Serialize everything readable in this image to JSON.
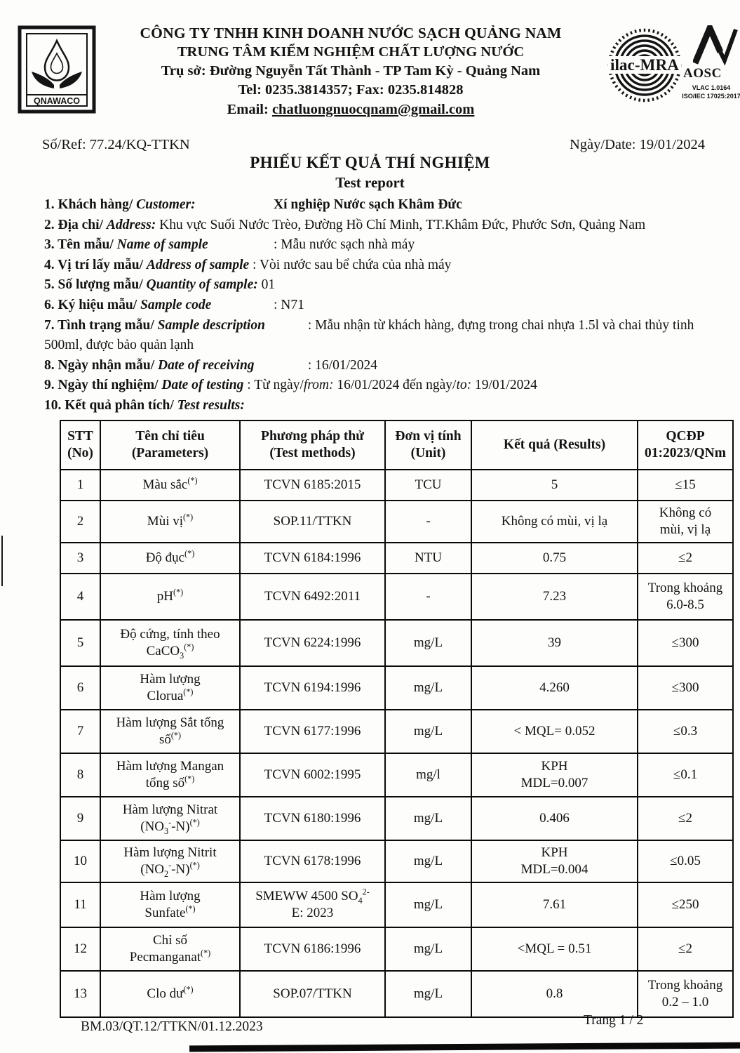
{
  "header": {
    "company": "CÔNG TY TNHH KINH DOANH NƯỚC SẠCH QUẢNG NAM",
    "center": "TRUNG TÂM KIỂM NGHIỆM CHẤT LƯỢNG NƯỚC",
    "address": "Trụ sở: Đường Nguyễn Tất Thành - TP Tam Kỳ -  Quảng Nam",
    "tel_fax": "Tel: 0235.3814357; Fax: 0235.814828",
    "email_label": "Email:",
    "email": "chatluongnuocqnam@gmail.com",
    "logos": {
      "qnawaco": "QNAWACO",
      "ilac": "ilac-MRA",
      "aosc": "AOSC",
      "aosc_sub1": "VLAC 1.0164",
      "aosc_sub2": "ISO/IEC 17025:2017"
    }
  },
  "ref_line": {
    "ref": "Số/Ref: 77.24/KQ-TTKN",
    "date": "Ngày/Date: 19/01/2024"
  },
  "title": "PHIẾU KẾT QUẢ THÍ NGHIỆM",
  "subtitle": "Test report",
  "info_items": [
    {
      "num": "1.",
      "vi": "Khách hàng/",
      "en": "Customer:",
      "value": [
        {
          "b": "Xí nghiệp Nước sạch Khâm Đức"
        }
      ]
    },
    {
      "num": "2.",
      "vi": "Địa chỉ/",
      "en": "Address:",
      "value": [
        {
          "t": " Khu vực Suối Nước Trèo, Đường Hồ Chí Minh, TT.Khâm Đức, Phước Sơn, Quảng Nam"
        }
      ]
    },
    {
      "num": "3.",
      "vi": "Tên mẫu/",
      "en": "Name of sample",
      "value": [
        {
          "t": ": Mẫu nước sạch nhà máy"
        }
      ]
    },
    {
      "num": "4.",
      "vi": "Vị trí lấy mẫu/",
      "en": "Address of sample",
      "value": [
        {
          "t": " : Vòi nước sau bể chứa của nhà máy"
        }
      ]
    },
    {
      "num": "5.",
      "vi": "Số lượng mẫu/",
      "en": "Quantity of sample:",
      "value": [
        {
          "t": " 01"
        }
      ]
    },
    {
      "num": "6.",
      "vi": "Ký hiệu mẫu/",
      "en": "Sample code",
      "value": [
        {
          "t": ": N71"
        }
      ]
    },
    {
      "num": "7.",
      "vi": "Tình trạng mẫu/",
      "en": "Sample description",
      "value": [
        {
          "t": " : Mẫu nhận từ khách hàng, đựng trong chai nhựa 1.5l và chai thủy tinh 500ml, được bảo quản lạnh"
        }
      ]
    },
    {
      "num": "8.",
      "vi": "Ngày nhận mẫu/",
      "en": "Date of receiving",
      "value": [
        {
          "t": " : 16/01/2024"
        }
      ]
    },
    {
      "num": "9.",
      "vi": "Ngày thí nghiệm/",
      "en": "Date of testing",
      "value": [
        {
          "t": " : Từ ngày/"
        },
        {
          "i": "from:"
        },
        {
          "t": " 16/01/2024  đến ngày/"
        },
        {
          "i": "to:"
        },
        {
          "t": " 19/01/2024"
        }
      ]
    },
    {
      "num": "10.",
      "vi": "Kết quả phân tích/",
      "en": "Test results:",
      "value": []
    }
  ],
  "table": {
    "headers": [
      {
        "l1": "STT",
        "l2": "(No)"
      },
      {
        "l1": "Tên chỉ tiêu",
        "l2": "(Parameters)"
      },
      {
        "l1": "Phương pháp thử",
        "l2": "(Test methods)"
      },
      {
        "l1": "Đơn vị tính",
        "l2": "(Unit)"
      },
      {
        "l1": "Kết quả (Results)",
        "l2": ""
      },
      {
        "l1": "QCĐP",
        "l2": "01:2023/QNm"
      }
    ],
    "rows": [
      {
        "no": "1",
        "param": [
          {
            "t": "Màu sắc"
          },
          {
            "sup": "(*)"
          }
        ],
        "method": [
          {
            "t": "TCVN 6185:2015"
          }
        ],
        "unit": "TCU",
        "result": [
          {
            "t": "5"
          }
        ],
        "limit": [
          {
            "t": "≤15"
          }
        ]
      },
      {
        "no": "2",
        "param": [
          {
            "t": "Mùi vị"
          },
          {
            "sup": "(*)"
          }
        ],
        "method": [
          {
            "t": "SOP.11/TTKN"
          }
        ],
        "unit": "-",
        "result": [
          {
            "t": "Không có mùi, vị lạ"
          }
        ],
        "limit": [
          {
            "t": "Không có"
          },
          {
            "br": true
          },
          {
            "t": "mùi, vị lạ"
          }
        ]
      },
      {
        "no": "3",
        "param": [
          {
            "t": "Độ đục"
          },
          {
            "sup": "(*)"
          }
        ],
        "method": [
          {
            "t": "TCVN 6184:1996"
          }
        ],
        "unit": "NTU",
        "result": [
          {
            "t": "0.75"
          }
        ],
        "limit": [
          {
            "t": "≤2"
          }
        ]
      },
      {
        "no": "4",
        "param": [
          {
            "t": "pH"
          },
          {
            "sup": "(*)"
          }
        ],
        "method": [
          {
            "t": "TCVN 6492:2011"
          }
        ],
        "unit": "-",
        "result": [
          {
            "t": "7.23"
          }
        ],
        "limit": [
          {
            "t": "Trong khoảng"
          },
          {
            "br": true
          },
          {
            "t": "6.0-8.5"
          }
        ]
      },
      {
        "no": "5",
        "param": [
          {
            "t": "Độ cứng, tính theo"
          },
          {
            "br": true
          },
          {
            "t": "CaCO"
          },
          {
            "sub": "3"
          },
          {
            "sup": "(*)"
          }
        ],
        "method": [
          {
            "t": "TCVN 6224:1996"
          }
        ],
        "unit": "mg/L",
        "result": [
          {
            "t": "39"
          }
        ],
        "limit": [
          {
            "t": "≤300"
          }
        ]
      },
      {
        "no": "6",
        "param": [
          {
            "t": "Hàm lượng"
          },
          {
            "br": true
          },
          {
            "t": "Clorua"
          },
          {
            "sup": "(*)"
          }
        ],
        "method": [
          {
            "t": "TCVN 6194:1996"
          }
        ],
        "unit": "mg/L",
        "result": [
          {
            "t": "4.260"
          }
        ],
        "limit": [
          {
            "t": "≤300"
          }
        ]
      },
      {
        "no": "7",
        "param": [
          {
            "t": "Hàm lượng Sắt tổng"
          },
          {
            "br": true
          },
          {
            "t": "số"
          },
          {
            "sup": "(*)"
          }
        ],
        "method": [
          {
            "t": "TCVN 6177:1996"
          }
        ],
        "unit": "mg/L",
        "result": [
          {
            "t": "< MQL= 0.052"
          }
        ],
        "limit": [
          {
            "t": "≤0.3"
          }
        ]
      },
      {
        "no": "8",
        "param": [
          {
            "t": "Hàm lượng Mangan"
          },
          {
            "br": true
          },
          {
            "t": "tổng số"
          },
          {
            "sup": "(*)"
          }
        ],
        "method": [
          {
            "t": "TCVN 6002:1995"
          }
        ],
        "unit": "mg/l",
        "result": [
          {
            "t": "KPH"
          },
          {
            "br": true
          },
          {
            "t": "MDL=0.007"
          }
        ],
        "limit": [
          {
            "t": "≤0.1"
          }
        ]
      },
      {
        "no": "9",
        "param": [
          {
            "t": "Hàm lượng Nitrat"
          },
          {
            "br": true
          },
          {
            "t": "(NO"
          },
          {
            "sub": "3"
          },
          {
            "sup": "-"
          },
          {
            "t": "-N)"
          },
          {
            "sup": "(*)"
          }
        ],
        "method": [
          {
            "t": "TCVN 6180:1996"
          }
        ],
        "unit": "mg/L",
        "result": [
          {
            "t": "0.406"
          }
        ],
        "limit": [
          {
            "t": "≤2"
          }
        ]
      },
      {
        "no": "10",
        "param": [
          {
            "t": "Hàm lượng Nitrit"
          },
          {
            "br": true
          },
          {
            "t": "(NO"
          },
          {
            "sub": "2"
          },
          {
            "sup": "-"
          },
          {
            "t": "-N)"
          },
          {
            "sup": "(*)"
          }
        ],
        "method": [
          {
            "t": "TCVN 6178:1996"
          }
        ],
        "unit": "mg/L",
        "result": [
          {
            "t": "KPH"
          },
          {
            "br": true
          },
          {
            "t": "MDL=0.004"
          }
        ],
        "limit": [
          {
            "t": "≤0.05"
          }
        ]
      },
      {
        "no": "11",
        "param": [
          {
            "t": "Hàm lượng"
          },
          {
            "br": true
          },
          {
            "t": "Sunfate"
          },
          {
            "sup": "(*)"
          }
        ],
        "method": [
          {
            "t": "SMEWW 4500 SO"
          },
          {
            "sub": "4"
          },
          {
            "sup": "2-"
          },
          {
            "br": true
          },
          {
            "t": "E: 2023"
          }
        ],
        "unit": "mg/L",
        "result": [
          {
            "t": "7.61"
          }
        ],
        "limit": [
          {
            "t": "≤250"
          }
        ]
      },
      {
        "no": "12",
        "param": [
          {
            "t": "Chỉ số"
          },
          {
            "br": true
          },
          {
            "t": "Pecmanganat"
          },
          {
            "sup": "(*)"
          }
        ],
        "method": [
          {
            "t": "TCVN 6186:1996"
          }
        ],
        "unit": "mg/L",
        "result": [
          {
            "t": "<MQL = 0.51"
          }
        ],
        "limit": [
          {
            "t": "≤2"
          }
        ]
      },
      {
        "no": "13",
        "param": [
          {
            "t": "Clo dư"
          },
          {
            "sup": "(*)"
          }
        ],
        "method": [
          {
            "t": "SOP.07/TTKN"
          }
        ],
        "unit": "mg/L",
        "result": [
          {
            "t": "0.8"
          }
        ],
        "limit": [
          {
            "t": "Trong khoảng"
          },
          {
            "br": true
          },
          {
            "t": "0.2 – 1.0"
          }
        ]
      }
    ]
  },
  "footer": {
    "doc_code": "BM.03/QT.12/TTKN/01.12.2023",
    "page": "Trang 1 / 2"
  }
}
